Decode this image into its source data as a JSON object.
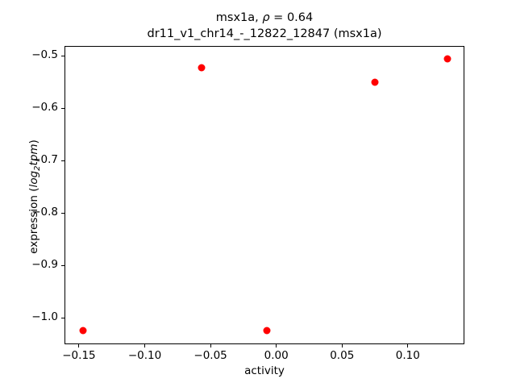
{
  "figure": {
    "title_line1": {
      "gene": "msx1a, ",
      "rho": "ρ",
      "eq": " = 0.64"
    },
    "title_line2": "dr11_v1_chr14_-_12822_12847 (msx1a)",
    "xlabel": "activity",
    "ylabel": {
      "pre": "expression (",
      "log": "log",
      "sub": "2",
      "var": "tpm",
      "close": ")"
    }
  },
  "chart_data": {
    "type": "scatter",
    "title": "msx1a, ρ = 0.64\ndr11_v1_chr14_-_12822_12847 (msx1a)",
    "xlabel": "activity",
    "ylabel": "expression (log2tpm)",
    "marker_color": "#ff0000",
    "marker_size_px": 9,
    "grid": false,
    "legend": null,
    "x": [
      -0.147,
      -0.057,
      -0.007,
      0.075,
      0.13
    ],
    "y": [
      -1.024,
      -0.522,
      -1.024,
      -0.55,
      -0.506
    ],
    "xlim": [
      -0.161,
      0.143
    ],
    "ylim": [
      -1.05,
      -0.481
    ],
    "xticks": {
      "values": [
        -0.15,
        -0.1,
        -0.05,
        0.0,
        0.05,
        0.1
      ],
      "labels": [
        "−0.15",
        "−0.10",
        "−0.05",
        "0.00",
        "0.05",
        "0.10"
      ]
    },
    "yticks": {
      "values": [
        -0.5,
        -0.6,
        -0.7,
        -0.8,
        -0.9,
        -1.0
      ],
      "labels": [
        "−0.5",
        "−0.6",
        "−0.7",
        "−0.8",
        "−0.9",
        "−1.0"
      ]
    }
  }
}
